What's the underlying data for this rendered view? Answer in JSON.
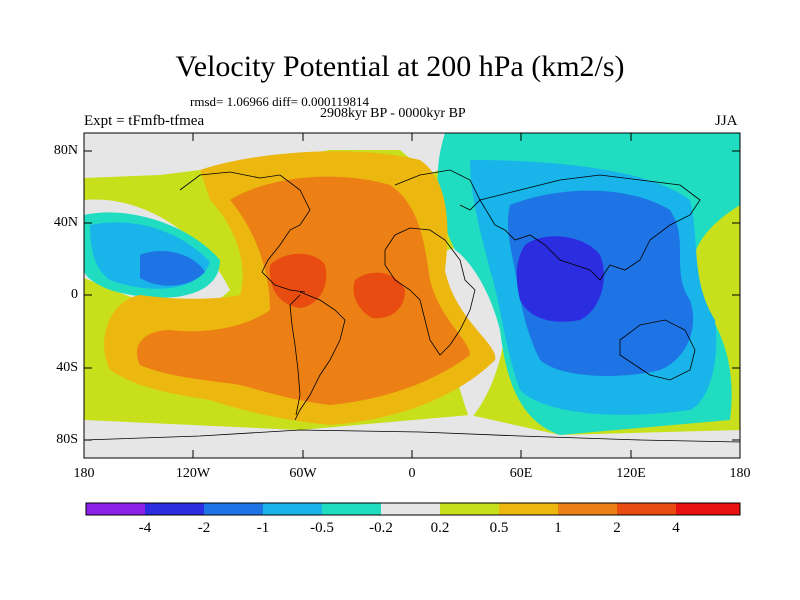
{
  "title": "Velocity Potential at 200 hPa (km2/s)",
  "stats": "rmsd= 1.06966 diff= 0.000119814",
  "period": "2908kyr BP - 0000kyr BP",
  "experiment": "Expt = tFmfb-tfmea",
  "season": "JJA",
  "lat_labels": [
    "80N",
    "40N",
    "0",
    "40S",
    "80S"
  ],
  "lon_labels": [
    "180",
    "120W",
    "60W",
    "0",
    "60E",
    "120E",
    "180"
  ],
  "colorbar": {
    "labels": [
      "-4",
      "-2",
      "-1",
      "-0.5",
      "-0.2",
      "0.2",
      "0.5",
      "1",
      "2",
      "4"
    ],
    "colors": [
      "#8c20e8",
      "#2c2ce0",
      "#1e74e4",
      "#18b4ea",
      "#20dcc0",
      "#e6e6e6",
      "#c8e01c",
      "#ecb810",
      "#ec8014",
      "#e84c10",
      "#e81010"
    ]
  },
  "colors": {
    "ocean_bg": "#c8e01c",
    "neutral": "#e6e6e6",
    "coast": "#000000"
  }
}
